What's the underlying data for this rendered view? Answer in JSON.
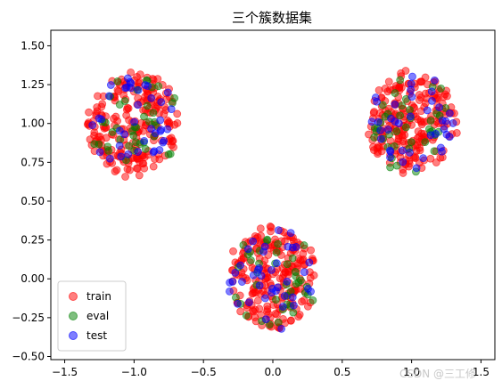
{
  "chart_data": {
    "type": "scatter",
    "title": "三个簇数据集",
    "xlabel": "",
    "ylabel": "",
    "xlim": [
      -1.6,
      1.6
    ],
    "ylim": [
      -0.52,
      1.6
    ],
    "x_ticks": [
      -1.5,
      -1.0,
      -0.5,
      0.0,
      0.5,
      1.0,
      1.5
    ],
    "x_tick_labels": [
      "−1.5",
      "−1.0",
      "−0.5",
      "0.0",
      "0.5",
      "1.0",
      "1.5"
    ],
    "y_ticks": [
      -0.5,
      -0.25,
      0.0,
      0.25,
      0.5,
      0.75,
      1.0,
      1.25,
      1.5
    ],
    "y_tick_labels": [
      "−0.50",
      "−0.25",
      "0.00",
      "0.25",
      "0.50",
      "0.75",
      "1.00",
      "1.25",
      "1.50"
    ],
    "grid": false,
    "legend_position": "lower-left",
    "clusters": [
      {
        "center": [
          -1.0,
          1.0
        ],
        "spread_x": 0.32,
        "spread_y": 0.32
      },
      {
        "center": [
          1.0,
          1.0
        ],
        "spread_x": 0.32,
        "spread_y": 0.32
      },
      {
        "center": [
          0.0,
          0.0
        ],
        "spread_x": 0.32,
        "spread_y": 0.32
      }
    ],
    "series": [
      {
        "name": "train",
        "color": "#ff0000",
        "points_per_cluster": 220,
        "seed": 7
      },
      {
        "name": "eval",
        "color": "#008000",
        "points_per_cluster": 40,
        "seed": 23
      },
      {
        "name": "test",
        "color": "#0000ff",
        "points_per_cluster": 40,
        "seed": 41
      }
    ]
  },
  "watermark": "CSDN @三工修"
}
